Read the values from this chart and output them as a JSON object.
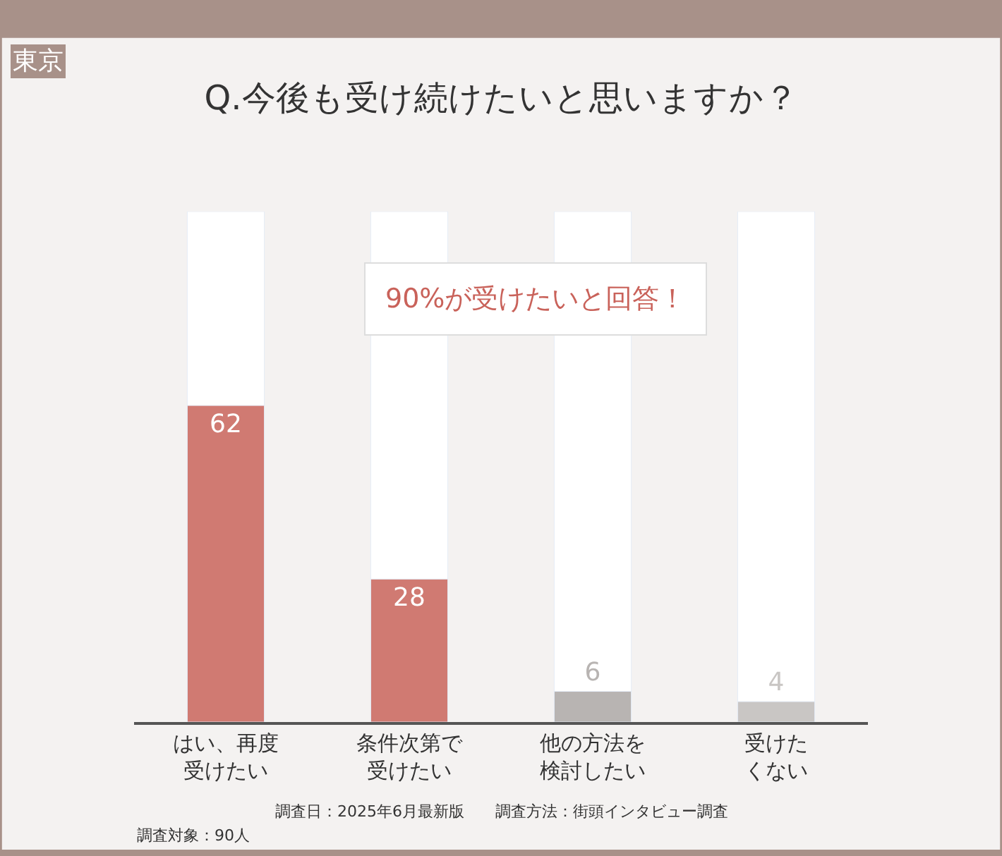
{
  "chart_data": {
    "type": "bar",
    "title": "Q.今後も受け続けたいと思いますか？",
    "categories": [
      "はい、再度受けたい",
      "条件次第で受けたい",
      "他の方法を検討したい",
      "受けたくない"
    ],
    "values": [
      62,
      28,
      6,
      4
    ],
    "colors": [
      "#d07a72",
      "#d07a72",
      "#b8b4b2",
      "#c9c6c4"
    ],
    "ylim": [
      0,
      100
    ],
    "data_labels": true,
    "legend": false,
    "annotations": [
      "東京",
      "90%が受けたいと回答！",
      "調査日：2025年6月最新版　　調査方法：街頭インタビュー調査",
      "調査対象：90人"
    ]
  }
}
